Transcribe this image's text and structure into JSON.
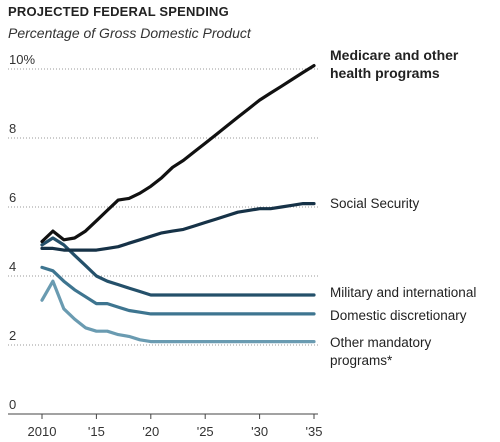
{
  "chart_data": {
    "type": "line",
    "title": "PROJECTED FEDERAL SPENDING",
    "subtitle": "Percentage of Gross Domestic Product",
    "x_tick_labels": [
      "2010",
      "'15",
      "'20",
      "'25",
      "'30",
      "'35"
    ],
    "x_ticks": [
      2010,
      2015,
      2020,
      2025,
      2030,
      2035
    ],
    "y_tick_labels": [
      "0",
      "2",
      "4",
      "6",
      "8",
      "10%"
    ],
    "y_ticks": [
      0,
      2,
      4,
      6,
      8,
      10
    ],
    "xlim": [
      2010,
      2035
    ],
    "ylim": [
      0,
      10
    ],
    "grid": "horizontal dotted",
    "x": [
      2010,
      2011,
      2012,
      2013,
      2014,
      2015,
      2016,
      2017,
      2018,
      2019,
      2020,
      2021,
      2022,
      2023,
      2024,
      2025,
      2026,
      2027,
      2028,
      2029,
      2030,
      2031,
      2032,
      2033,
      2034,
      2035
    ],
    "series": [
      {
        "name": "Medicare and other health programs",
        "label_lines": [
          "Medicare and other",
          "health programs"
        ],
        "color": "#111111",
        "bold_label": true,
        "values": [
          5.0,
          5.3,
          5.05,
          5.1,
          5.3,
          5.6,
          5.9,
          6.2,
          6.25,
          6.4,
          6.6,
          6.85,
          7.15,
          7.35,
          7.6,
          7.85,
          8.1,
          8.35,
          8.6,
          8.85,
          9.1,
          9.3,
          9.5,
          9.7,
          9.9,
          10.1
        ]
      },
      {
        "name": "Social Security",
        "label_lines": [
          "Social Security"
        ],
        "color": "#163247",
        "values": [
          4.8,
          4.8,
          4.75,
          4.75,
          4.75,
          4.75,
          4.8,
          4.85,
          4.95,
          5.05,
          5.15,
          5.25,
          5.3,
          5.35,
          5.45,
          5.55,
          5.65,
          5.75,
          5.85,
          5.9,
          5.95,
          5.95,
          6.0,
          6.05,
          6.1,
          6.1
        ]
      },
      {
        "name": "Military and international",
        "label_lines": [
          "Military and international"
        ],
        "color": "#24506a",
        "values": [
          4.9,
          5.1,
          4.9,
          4.6,
          4.3,
          4.0,
          3.85,
          3.75,
          3.65,
          3.55,
          3.45,
          3.45,
          3.45,
          3.45,
          3.45,
          3.45,
          3.45,
          3.45,
          3.45,
          3.45,
          3.45,
          3.45,
          3.45,
          3.45,
          3.45,
          3.45
        ]
      },
      {
        "name": "Domestic discretionary",
        "label_lines": [
          "Domestic discretionary"
        ],
        "color": "#3e7590",
        "values": [
          4.25,
          4.15,
          3.85,
          3.6,
          3.4,
          3.2,
          3.2,
          3.1,
          3.0,
          2.95,
          2.9,
          2.9,
          2.9,
          2.9,
          2.9,
          2.9,
          2.9,
          2.9,
          2.9,
          2.9,
          2.9,
          2.9,
          2.9,
          2.9,
          2.9,
          2.9
        ]
      },
      {
        "name": "Other mandatory programs*",
        "label_lines": [
          "Other mandatory",
          "programs*"
        ],
        "color": "#6a9bb1",
        "values": [
          3.3,
          3.85,
          3.05,
          2.75,
          2.5,
          2.4,
          2.4,
          2.3,
          2.25,
          2.15,
          2.1,
          2.1,
          2.1,
          2.1,
          2.1,
          2.1,
          2.1,
          2.1,
          2.1,
          2.1,
          2.1,
          2.1,
          2.1,
          2.1,
          2.1,
          2.1
        ]
      }
    ]
  }
}
